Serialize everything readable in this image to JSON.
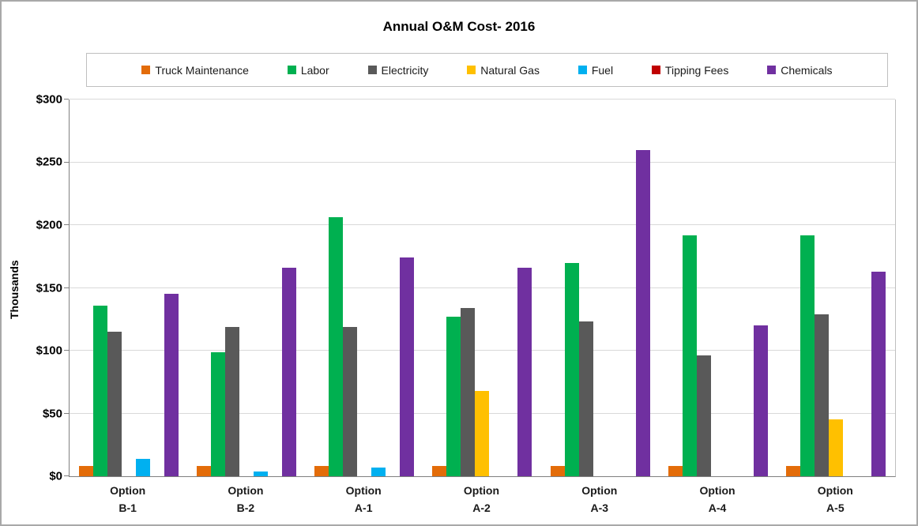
{
  "title": "Annual O&M Cost- 2016",
  "y_axis": {
    "title": "Thousands",
    "ticks": [
      "$0",
      "$50",
      "$100",
      "$150",
      "$200",
      "$250",
      "$300"
    ]
  },
  "chart_data": {
    "type": "bar",
    "title": "Annual O&M Cost- 2016",
    "ylabel": "Thousands",
    "ylim": [
      0,
      300
    ],
    "ytick_step": 50,
    "grid": true,
    "legend_position": "top",
    "categories": [
      "Option B-1",
      "Option B-2",
      "Option A-1",
      "Option A-2",
      "Option A-3",
      "Option A-4",
      "Option A-5"
    ],
    "category_lines": [
      [
        "Option",
        "B-1"
      ],
      [
        "Option",
        "B-2"
      ],
      [
        "Option",
        "A-1"
      ],
      [
        "Option",
        "A-2"
      ],
      [
        "Option",
        "A-3"
      ],
      [
        "Option",
        "A-4"
      ],
      [
        "Option",
        "A-5"
      ]
    ],
    "series": [
      {
        "name": "Truck Maintenance",
        "color": "#e36c09",
        "values": [
          8,
          8,
          8,
          8,
          8,
          8,
          8
        ]
      },
      {
        "name": "Labor",
        "color": "#00b050",
        "values": [
          136,
          99,
          206,
          127,
          170,
          192,
          192
        ]
      },
      {
        "name": "Electricity",
        "color": "#595959",
        "values": [
          115,
          119,
          119,
          134,
          123,
          96,
          129
        ]
      },
      {
        "name": "Natural Gas",
        "color": "#ffc000",
        "values": [
          0,
          0,
          0,
          68,
          0,
          0,
          45
        ]
      },
      {
        "name": "Fuel",
        "color": "#00b0f0",
        "values": [
          14,
          4,
          7,
          0,
          0,
          0,
          0
        ]
      },
      {
        "name": "Tipping Fees",
        "color": "#c00000",
        "values": [
          0,
          0,
          0,
          0,
          0,
          0,
          0
        ]
      },
      {
        "name": "Chemicals",
        "color": "#7030a0",
        "values": [
          145,
          166,
          174,
          166,
          260,
          120,
          163
        ]
      }
    ]
  }
}
